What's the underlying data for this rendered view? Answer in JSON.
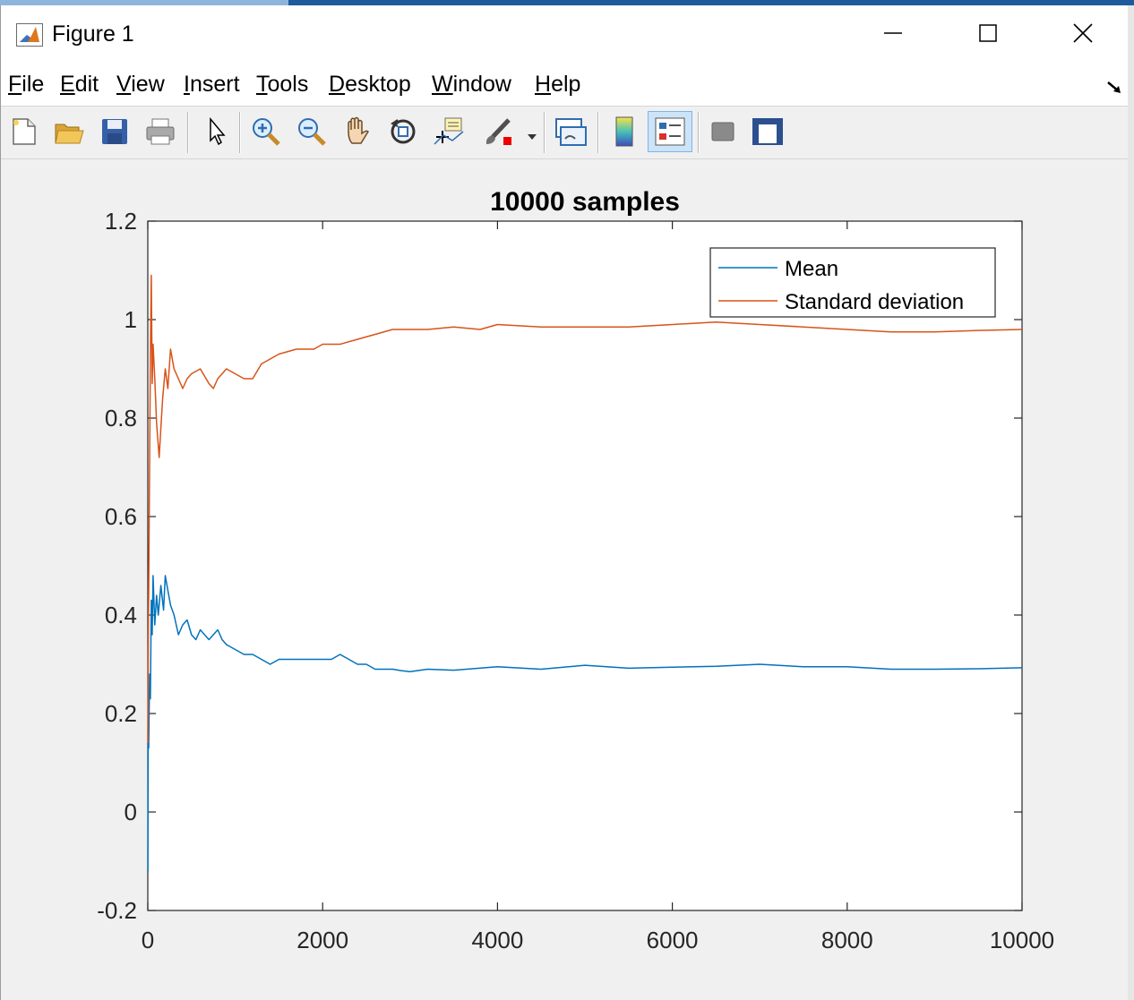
{
  "window": {
    "title": "Figure 1"
  },
  "menu": {
    "items": [
      {
        "key": "F",
        "rest": "ile"
      },
      {
        "key": "E",
        "rest": "dit"
      },
      {
        "key": "V",
        "rest": "iew"
      },
      {
        "key": "I",
        "rest": "nsert"
      },
      {
        "key": "T",
        "rest": "ools"
      },
      {
        "key": "D",
        "rest": "esktop"
      },
      {
        "key": "W",
        "rest": "indow"
      },
      {
        "key": "H",
        "rest": "elp"
      }
    ]
  },
  "toolbar": {
    "icons": [
      "new-figure-icon",
      "open-file-icon",
      "save-icon",
      "print-icon",
      "edit-plot-arrow-icon",
      "zoom-in-icon",
      "zoom-out-icon",
      "pan-hand-icon",
      "rotate-3d-icon",
      "data-cursor-icon",
      "brush-icon",
      "link-plot-icon",
      "colorbar-icon",
      "legend-icon",
      "hide-plot-tools-icon",
      "show-plot-tools-icon"
    ],
    "active": "legend-icon"
  },
  "colors": {
    "mean": "#0072bd",
    "std": "#d95319",
    "axes": "#262626",
    "figure_bg": "#f0f0f0"
  },
  "chart_data": {
    "type": "line",
    "title": "10000 samples",
    "xlabel": "",
    "ylabel": "",
    "xlim": [
      0,
      10000
    ],
    "ylim": [
      -0.2,
      1.2
    ],
    "xticks": [
      0,
      2000,
      4000,
      6000,
      8000,
      10000
    ],
    "yticks": [
      -0.2,
      0,
      0.2,
      0.4,
      0.6,
      0.8,
      1,
      1.2
    ],
    "xtick_labels": [
      "0",
      "2000",
      "4000",
      "6000",
      "8000",
      "10000"
    ],
    "ytick_labels": [
      "-0.2",
      "0",
      "0.2",
      "0.4",
      "0.6",
      "0.8",
      "1",
      "1.2"
    ],
    "grid": false,
    "legend": {
      "placement": "top-right",
      "entries": [
        "Mean",
        "Standard deviation"
      ]
    },
    "series": [
      {
        "name": "Mean",
        "x": [
          1,
          5,
          10,
          20,
          30,
          40,
          50,
          60,
          80,
          100,
          120,
          150,
          180,
          200,
          230,
          260,
          300,
          350,
          400,
          450,
          500,
          550,
          600,
          650,
          700,
          750,
          800,
          850,
          900,
          1000,
          1100,
          1200,
          1300,
          1400,
          1500,
          1700,
          1900,
          2000,
          2100,
          2200,
          2300,
          2400,
          2500,
          2600,
          2700,
          2800,
          2900,
          3000,
          3200,
          3500,
          4000,
          4500,
          5000,
          5500,
          6000,
          6500,
          7000,
          7500,
          8000,
          8500,
          9000,
          9500,
          10000
        ],
        "y": [
          -0.12,
          0.18,
          0.13,
          0.28,
          0.23,
          0.43,
          0.36,
          0.48,
          0.38,
          0.44,
          0.4,
          0.46,
          0.41,
          0.48,
          0.45,
          0.42,
          0.4,
          0.36,
          0.38,
          0.39,
          0.36,
          0.35,
          0.37,
          0.36,
          0.35,
          0.36,
          0.37,
          0.35,
          0.34,
          0.33,
          0.32,
          0.32,
          0.31,
          0.3,
          0.31,
          0.31,
          0.31,
          0.31,
          0.31,
          0.32,
          0.31,
          0.3,
          0.3,
          0.29,
          0.29,
          0.29,
          0.287,
          0.285,
          0.29,
          0.288,
          0.295,
          0.29,
          0.298,
          0.292,
          0.294,
          0.296,
          0.3,
          0.295,
          0.295,
          0.29,
          0.29,
          0.291,
          0.293
        ]
      },
      {
        "name": "Standard deviation",
        "x": [
          1,
          5,
          10,
          20,
          30,
          40,
          50,
          60,
          80,
          100,
          130,
          150,
          170,
          200,
          230,
          260,
          300,
          350,
          400,
          450,
          500,
          600,
          700,
          750,
          800,
          900,
          1000,
          1100,
          1200,
          1300,
          1400,
          1500,
          1700,
          1900,
          2000,
          2200,
          2400,
          2600,
          2800,
          3000,
          3200,
          3500,
          3800,
          4000,
          4500,
          5000,
          5500,
          6000,
          6500,
          7000,
          7500,
          8000,
          8500,
          9000,
          9500,
          10000
        ],
        "y": [
          0.14,
          0.33,
          0.45,
          0.7,
          0.93,
          1.09,
          0.87,
          0.95,
          0.88,
          0.79,
          0.72,
          0.78,
          0.84,
          0.9,
          0.86,
          0.94,
          0.9,
          0.88,
          0.86,
          0.88,
          0.89,
          0.9,
          0.87,
          0.86,
          0.88,
          0.9,
          0.89,
          0.88,
          0.88,
          0.91,
          0.92,
          0.93,
          0.94,
          0.94,
          0.95,
          0.95,
          0.96,
          0.97,
          0.98,
          0.98,
          0.98,
          0.985,
          0.98,
          0.99,
          0.985,
          0.985,
          0.985,
          0.99,
          0.995,
          0.99,
          0.985,
          0.98,
          0.975,
          0.975,
          0.978,
          0.98
        ]
      }
    ]
  }
}
